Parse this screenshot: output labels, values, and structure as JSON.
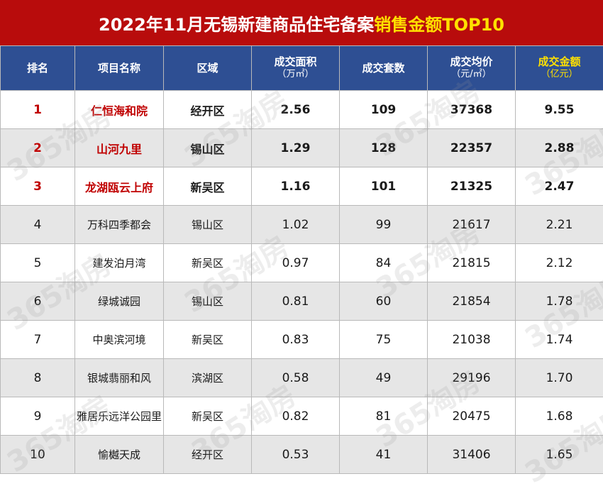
{
  "title": {
    "main": "2022年11月无锡新建商品住宅备案",
    "highlight": "销售金额TOP10"
  },
  "colors": {
    "title_background": "#b80c0c",
    "header_background": "#2e4f93",
    "highlight_text": "#ffe000",
    "top3_text": "#c00000"
  },
  "headers": {
    "rank": "排名",
    "name": "项目名称",
    "area": "区域",
    "floor_area": "成交面积",
    "floor_area_unit": "（万㎡）",
    "units": "成交套数",
    "avg_price": "成交均价",
    "avg_price_unit": "（元/㎡）",
    "amount": "成交金额",
    "amount_unit": "（亿元）"
  },
  "watermark": "365淘房",
  "chart_data": {
    "type": "table",
    "title": "2022年11月无锡新建商品住宅备案销售金额TOP10",
    "columns": [
      "排名",
      "项目名称",
      "区域",
      "成交面积（万㎡）",
      "成交套数",
      "成交均价（元/㎡）",
      "成交金额（亿元）"
    ],
    "rows": [
      {
        "rank": "1",
        "name": "仁恒海和院",
        "area": "经开区",
        "floor_area": "2.56",
        "units": "109",
        "avg_price": "37368",
        "amount": "9.55"
      },
      {
        "rank": "2",
        "name": "山河九里",
        "area": "锡山区",
        "floor_area": "1.29",
        "units": "128",
        "avg_price": "22357",
        "amount": "2.88"
      },
      {
        "rank": "3",
        "name": "龙湖瓯云上府",
        "area": "新吴区",
        "floor_area": "1.16",
        "units": "101",
        "avg_price": "21325",
        "amount": "2.47"
      },
      {
        "rank": "4",
        "name": "万科四季都会",
        "area": "锡山区",
        "floor_area": "1.02",
        "units": "99",
        "avg_price": "21617",
        "amount": "2.21"
      },
      {
        "rank": "5",
        "name": "建发泊月湾",
        "area": "新吴区",
        "floor_area": "0.97",
        "units": "84",
        "avg_price": "21815",
        "amount": "2.12"
      },
      {
        "rank": "6",
        "name": "绿城诚园",
        "area": "锡山区",
        "floor_area": "0.81",
        "units": "60",
        "avg_price": "21854",
        "amount": "1.78"
      },
      {
        "rank": "7",
        "name": "中奥滨河境",
        "area": "新吴区",
        "floor_area": "0.83",
        "units": "75",
        "avg_price": "21038",
        "amount": "1.74"
      },
      {
        "rank": "8",
        "name": "银城翡丽和风",
        "area": "滨湖区",
        "floor_area": "0.58",
        "units": "49",
        "avg_price": "29196",
        "amount": "1.70"
      },
      {
        "rank": "9",
        "name": "雅居乐远洋公园里",
        "area": "新吴区",
        "floor_area": "0.82",
        "units": "81",
        "avg_price": "20475",
        "amount": "1.68"
      },
      {
        "rank": "10",
        "name": "愉樾天成",
        "area": "经开区",
        "floor_area": "0.53",
        "units": "41",
        "avg_price": "31406",
        "amount": "1.65"
      }
    ]
  }
}
